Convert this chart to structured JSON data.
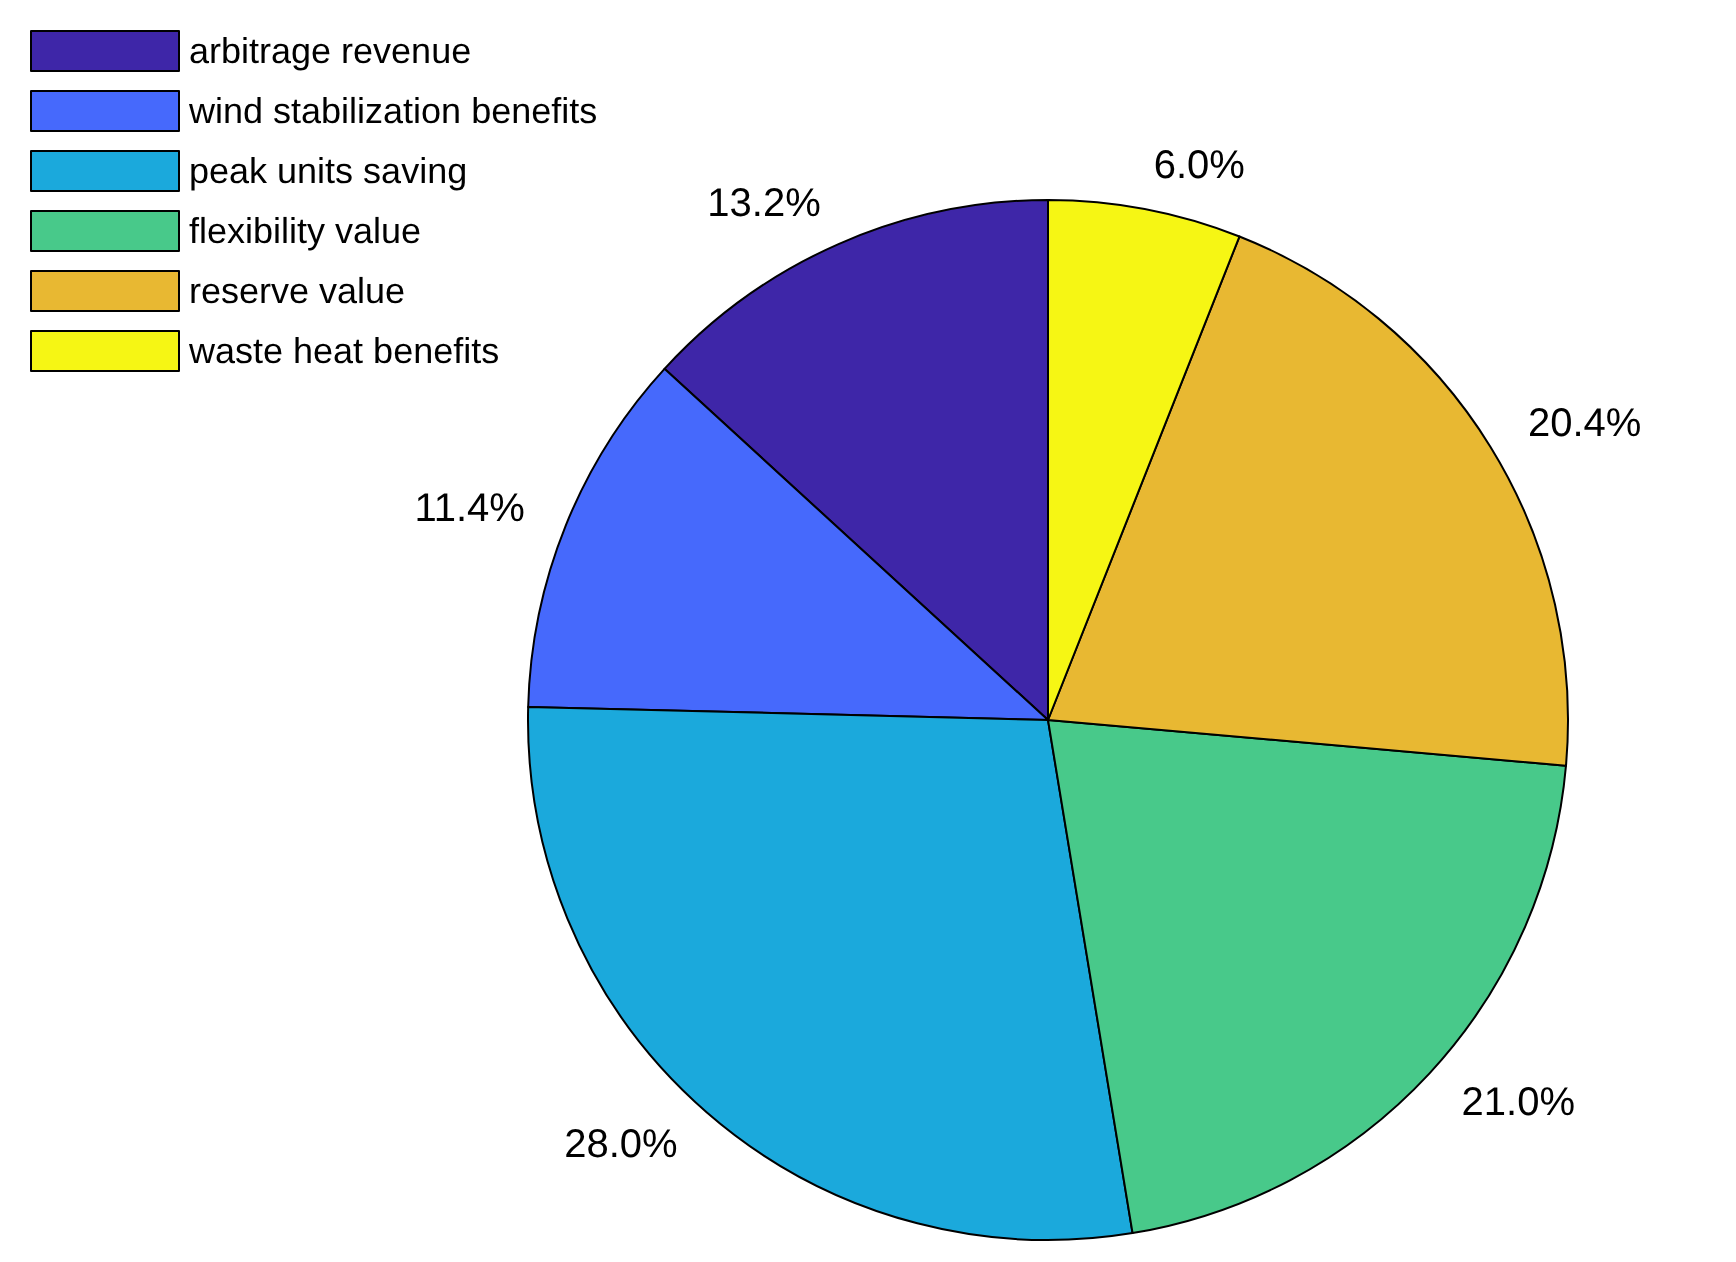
{
  "chart_data": {
    "type": "pie",
    "categories": [
      "arbitrage revenue",
      "wind stabilization benefits",
      "peak units saving",
      "flexibility value",
      "reserve value",
      "waste heat benefits"
    ],
    "values": [
      13.2,
      11.4,
      28.0,
      21.0,
      20.4,
      6.0
    ],
    "value_labels": [
      "13.2%",
      "11.4%",
      "28.0%",
      "21.0%",
      "20.4%",
      "6.0%"
    ],
    "colors": [
      "#3e26a8",
      "#4669fc",
      "#1ba9dc",
      "#48c98a",
      "#e8b832",
      "#f6f614"
    ],
    "legend": "top left"
  }
}
